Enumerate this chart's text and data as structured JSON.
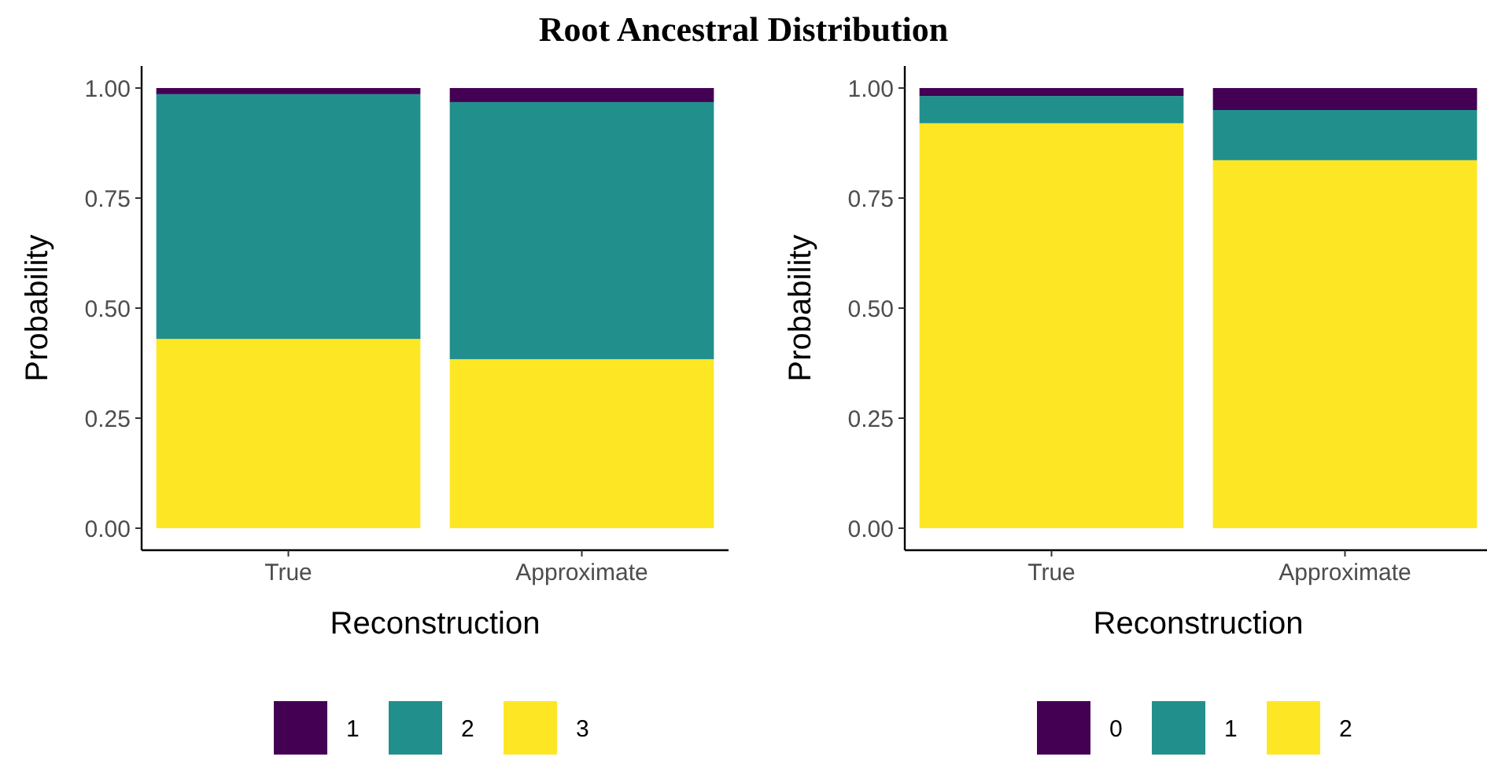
{
  "chart_data": [
    {
      "type": "bar",
      "title": "Root Ancestral Distribution",
      "xlabel": "Reconstruction",
      "ylabel": "Probability",
      "categories": [
        "True",
        "Approximate"
      ],
      "stacked": true,
      "legend": "bottom",
      "grid": false,
      "ylim": [
        -0.05,
        1.05
      ],
      "yticks": [
        {
          "value": 0,
          "label": "0.00"
        },
        {
          "value": 0.25,
          "label": "0.25"
        },
        {
          "value": 0.5,
          "label": "0.50"
        },
        {
          "value": 0.75,
          "label": "0.75"
        },
        {
          "value": 1,
          "label": "1.00"
        }
      ],
      "series": [
        {
          "name": "3",
          "color": "#fde725",
          "values": [
            0.43,
            0.384
          ]
        },
        {
          "name": "2",
          "color": "#21908c",
          "values": [
            0.556,
            0.584
          ]
        },
        {
          "name": "1",
          "color": "#440154",
          "values": [
            0.014,
            0.032
          ]
        }
      ]
    },
    {
      "type": "bar",
      "xlabel": "Reconstruction",
      "ylabel": "Probability",
      "categories": [
        "True",
        "Approximate"
      ],
      "stacked": true,
      "legend": "bottom",
      "grid": false,
      "ylim": [
        -0.05,
        1.05
      ],
      "yticks": [
        {
          "value": 0,
          "label": "0.00"
        },
        {
          "value": 0.25,
          "label": "0.25"
        },
        {
          "value": 0.5,
          "label": "0.50"
        },
        {
          "value": 0.75,
          "label": "0.75"
        },
        {
          "value": 1,
          "label": "1.00"
        }
      ],
      "series": [
        {
          "name": "2",
          "color": "#fde725",
          "values": [
            0.92,
            0.836
          ]
        },
        {
          "name": "1",
          "color": "#21908c",
          "values": [
            0.062,
            0.114
          ]
        },
        {
          "name": "0",
          "color": "#440154",
          "values": [
            0.018,
            0.05
          ]
        }
      ]
    }
  ]
}
